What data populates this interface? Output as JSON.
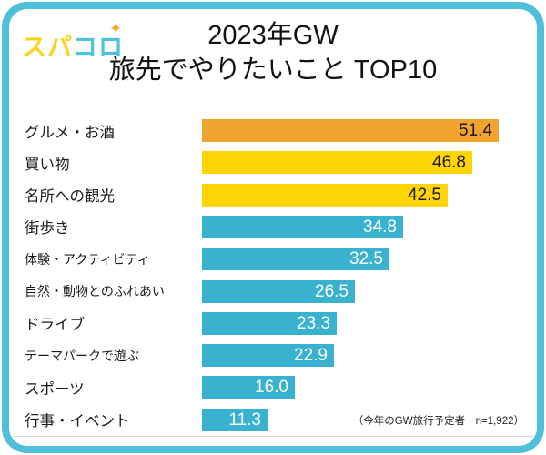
{
  "header": {
    "logo_part1": "スパ",
    "logo_part2": "コロ",
    "logo_sparkle": "✦",
    "title_line1": "2023年GW",
    "title_line2": "旅先でやりたいこと TOP10"
  },
  "chart_data": {
    "type": "bar",
    "orientation": "horizontal",
    "title": "2023年GW 旅先でやりたいこと TOP10",
    "categories": [
      "グルメ・お酒",
      "買い物",
      "名所への観光",
      "街歩き",
      "体験・アクティビティ",
      "自然・動物とのふれあい",
      "ドライブ",
      "テーマパークで遊ぶ",
      "スポーツ",
      "行事・イベント"
    ],
    "values": [
      51.4,
      46.8,
      42.5,
      34.8,
      32.5,
      26.5,
      23.3,
      22.9,
      16.0,
      11.3
    ],
    "value_labels": [
      "51.4",
      "46.8",
      "42.5",
      "34.8",
      "32.5",
      "26.5",
      "23.3",
      "22.9",
      "16.0",
      "11.3"
    ],
    "bar_colors": [
      "#F0A42E",
      "#FFD405",
      "#FFD405",
      "#39B2D0",
      "#39B2D0",
      "#39B2D0",
      "#39B2D0",
      "#39B2D0",
      "#39B2D0",
      "#39B2D0"
    ],
    "value_text_colors": [
      "#1a1a1a",
      "#1a1a1a",
      "#1a1a1a",
      "#ffffff",
      "#ffffff",
      "#ffffff",
      "#ffffff",
      "#ffffff",
      "#ffffff",
      "#ffffff"
    ],
    "xlim": [
      0,
      55
    ],
    "grid": false,
    "legend": false,
    "value_labels_position": "inside-end"
  },
  "footer": {
    "note": "（今年のGW旅行予定者　n=1,922）"
  },
  "colors": {
    "border": "#4FC0DC",
    "axis_line": "#D6D6D6",
    "rank1": "#F0A42E",
    "rank2_3": "#FFD405",
    "rank4_10": "#39B2D0",
    "logo_yellow": "#FFD21C",
    "logo_blue": "#4EC1DC",
    "sparkle_orange": "#F5A623"
  }
}
